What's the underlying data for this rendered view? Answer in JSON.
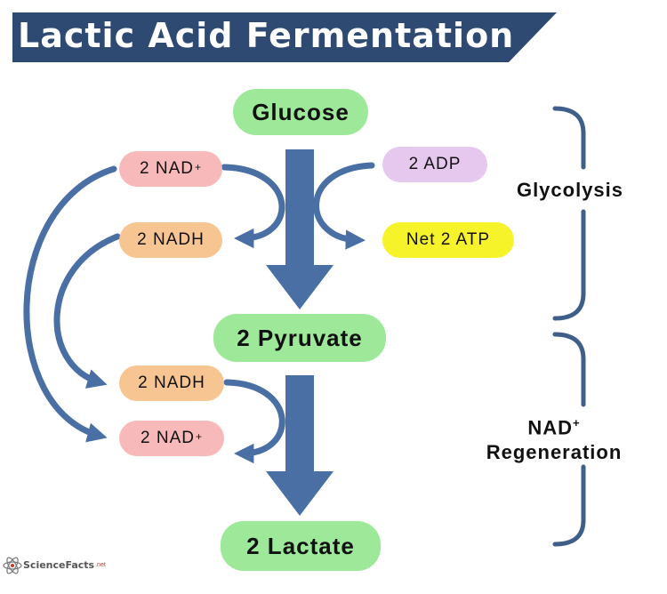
{
  "title": "Lactic Acid Fermentation",
  "colors": {
    "banner": "#2f4a72",
    "arrow": "#4a6fa5",
    "green_pill": "#9ee89a",
    "nad_pill": "#f8b9bb",
    "nadh_pill": "#f7c591",
    "adp_pill": "#e6c8ef",
    "atp_pill": "#f6f32a",
    "bracket": "#3f5f8a"
  },
  "nodes": {
    "glucose": "Glucose",
    "pyruvate": "2 Pyruvate",
    "lactate": "2 Lactate",
    "nad_top": "2 NAD",
    "nad_top_sup": "+",
    "nadh_top": "2 NADH",
    "adp": "2 ADP",
    "atp": "Net 2 ATP",
    "nadh_bottom": "2 NADH",
    "nad_bottom": "2 NAD",
    "nad_bottom_sup": "+"
  },
  "stages": {
    "glycolysis": "Glycolysis",
    "regen_line1": "NAD",
    "regen_line1_sup": "+",
    "regen_line2": "Regeneration"
  },
  "logo": {
    "text": "ScienceFacts",
    "suffix": ".net"
  }
}
